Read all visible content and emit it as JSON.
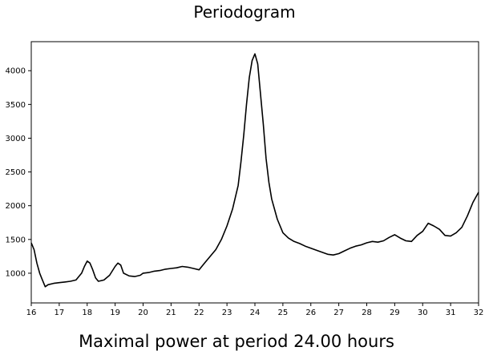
{
  "chart_data": {
    "type": "line",
    "title": "Periodogram",
    "footer": "Maximal power at period 24.00 hours",
    "xlabel": "",
    "ylabel": "",
    "xlim": [
      16,
      32
    ],
    "ylim": [
      560,
      4430
    ],
    "xticks": [
      16,
      17,
      18,
      19,
      20,
      21,
      22,
      23,
      24,
      25,
      26,
      27,
      28,
      29,
      30,
      31,
      32
    ],
    "yticks": [
      1000,
      1500,
      2000,
      2500,
      3000,
      3500,
      4000
    ],
    "grid": false,
    "series": [
      {
        "color": "#000000",
        "x": [
          16.0,
          16.1,
          16.2,
          16.3,
          16.4,
          16.5,
          16.6,
          16.8,
          17.0,
          17.2,
          17.4,
          17.6,
          17.8,
          17.9,
          18.0,
          18.1,
          18.2,
          18.3,
          18.4,
          18.6,
          18.8,
          19.0,
          19.1,
          19.2,
          19.3,
          19.5,
          19.7,
          19.9,
          20.0,
          20.2,
          20.4,
          20.6,
          20.8,
          21.0,
          21.2,
          21.4,
          21.6,
          21.8,
          22.0,
          22.2,
          22.4,
          22.6,
          22.8,
          23.0,
          23.2,
          23.4,
          23.5,
          23.6,
          23.7,
          23.8,
          23.9,
          24.0,
          24.1,
          24.2,
          24.3,
          24.4,
          24.5,
          24.6,
          24.7,
          24.8,
          25.0,
          25.2,
          25.4,
          25.6,
          25.8,
          26.0,
          26.2,
          26.4,
          26.6,
          26.8,
          27.0,
          27.2,
          27.4,
          27.6,
          27.8,
          28.0,
          28.2,
          28.4,
          28.6,
          28.8,
          29.0,
          29.2,
          29.4,
          29.6,
          29.8,
          30.0,
          30.2,
          30.4,
          30.6,
          30.8,
          31.0,
          31.2,
          31.4,
          31.6,
          31.8,
          32.0
        ],
        "y": [
          1450,
          1350,
          1150,
          1000,
          900,
          800,
          830,
          850,
          860,
          870,
          880,
          900,
          1000,
          1100,
          1180,
          1150,
          1050,
          930,
          880,
          900,
          970,
          1100,
          1150,
          1120,
          1000,
          960,
          950,
          970,
          1000,
          1010,
          1030,
          1040,
          1060,
          1070,
          1080,
          1100,
          1090,
          1070,
          1050,
          1150,
          1250,
          1350,
          1500,
          1700,
          1950,
          2300,
          2650,
          3050,
          3500,
          3900,
          4150,
          4250,
          4100,
          3650,
          3200,
          2700,
          2350,
          2100,
          1950,
          1800,
          1600,
          1520,
          1470,
          1440,
          1400,
          1370,
          1340,
          1310,
          1280,
          1270,
          1290,
          1330,
          1370,
          1400,
          1420,
          1450,
          1470,
          1460,
          1480,
          1530,
          1570,
          1520,
          1480,
          1470,
          1560,
          1620,
          1740,
          1700,
          1650,
          1560,
          1550,
          1600,
          1680,
          1850,
          2050,
          2200
        ]
      }
    ]
  }
}
